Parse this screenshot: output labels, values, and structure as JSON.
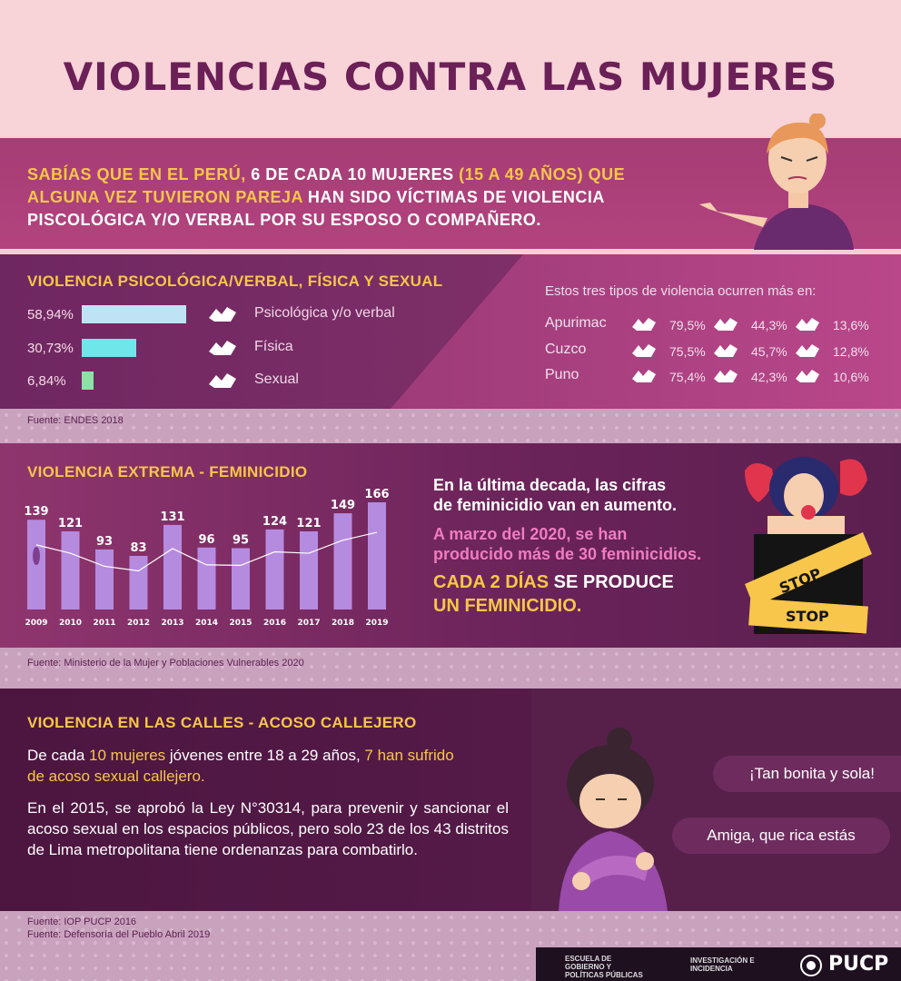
{
  "title": "VIOLENCIAS CONTRA LAS MUJERES",
  "intro": {
    "a": "SABÍAS QUE EN EL PERÚ,",
    "b": " 6 DE CADA 10 MUJERES ",
    "c": "(15 A 49 AÑOS)",
    "d": " QUE",
    "e": "ALGUNA VEZ TUVIERON PAREJA",
    "f": " HAN SIDO VÍCTIMAS DE VIOLENCIA",
    "g": "PISCOLÓGICA Y/O VERBAL POR SU ESPOSO O COMPAÑERO."
  },
  "section1": {
    "heading": "VIOLENCIA PSICOLÓGICA/VERBAL, FÍSICA Y SEXUAL",
    "source": "Fuente: ENDES 2018",
    "region_intro": "Estos tres tipos de violencia ocurren más en:",
    "regions": [
      {
        "name": "Apurimac",
        "v1": "79,5%",
        "v2": "44,3%",
        "v3": "13,6%"
      },
      {
        "name": "Cuzco",
        "v1": "75,5%",
        "v2": "45,7%",
        "v3": "12,8%"
      },
      {
        "name": "Puno",
        "v1": "75,4%",
        "v2": "42,3%",
        "v3": "10,6%"
      }
    ]
  },
  "chart_data": [
    {
      "type": "bar",
      "orientation": "horizontal",
      "categories": [
        "Psicológica y/o verbal",
        "Física",
        "Sexual"
      ],
      "values": [
        58.94,
        30.73,
        6.84
      ],
      "labels": [
        "58,94%",
        "30,73%",
        "6,84%"
      ],
      "colors": [
        "#bfe3f5",
        "#6fe6ea",
        "#8fe0a6"
      ]
    },
    {
      "type": "bar",
      "title": "VIOLENCIA  EXTREMA - FEMINICIDIO",
      "categories": [
        "2009",
        "2010",
        "2011",
        "2012",
        "2013",
        "2014",
        "2015",
        "2016",
        "2017",
        "2018",
        "2019"
      ],
      "values": [
        139,
        121,
        93,
        83,
        131,
        96,
        95,
        124,
        121,
        149,
        166
      ],
      "ylim": [
        0,
        166
      ],
      "bar_color": "#b58be0",
      "grid": false
    }
  ],
  "section2": {
    "source": "Fuente: Ministerio de la Mujer y Poblaciones Vulnerables 2020",
    "t1": "En la última decada, las cifras",
    "t2": "de feminicidio van en aumento.",
    "t3": "A marzo del 2020, se han",
    "t4": "producido más de 30 feminicidios.",
    "t5a": "CADA 2 DÍAS",
    "t5b": " SE PRODUCE",
    "t6": "UN FEMINICIDIO.",
    "stop1": "STOP",
    "stop2": "STOP"
  },
  "section3": {
    "heading": "VIOLENCIA EN LAS CALLES - ACOSO CALLEJERO",
    "p1a": "De cada ",
    "p1b": "10 mujeres",
    "p1c": " jóvenes entre 18 a 29 años, ",
    "p1d": "7 han sufrido",
    "p1e": "de acoso sexual callejero.",
    "p2": "En el 2015, se aprobó la Ley N°30314, para prevenir y sancionar el acoso sexual en los espacios públicos, pero solo 23 de los 43 distritos de Lima metropolitana tiene ordenanzas para combatirlo.",
    "bubble1": "¡Tan bonita y sola!",
    "bubble2": "Amiga, que rica estás",
    "source1": "Fuente: IOP PUCP 2016",
    "source2": "Fuente: Defensoría del Pueblo Abril 2019"
  },
  "footer": {
    "school1": "ESCUELA DE",
    "school2": "GOBIERNO Y",
    "school3": "POLÍTICAS PÚBLICAS",
    "inv1": "INVESTIGACIÓN E",
    "inv2": "INCIDENCIA",
    "brand": "PUCP"
  }
}
